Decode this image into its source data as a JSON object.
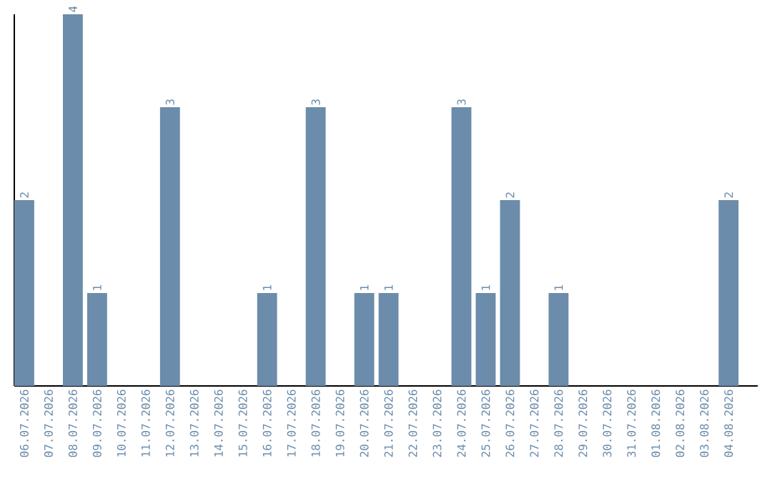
{
  "chart_data": {
    "type": "bar",
    "categories": [
      "06.07.2026",
      "07.07.2026",
      "08.07.2026",
      "09.07.2026",
      "10.07.2026",
      "11.07.2026",
      "12.07.2026",
      "13.07.2026",
      "14.07.2026",
      "15.07.2026",
      "16.07.2026",
      "17.07.2026",
      "18.07.2026",
      "19.07.2026",
      "20.07.2026",
      "21.07.2026",
      "22.07.2026",
      "23.07.2026",
      "24.07.2026",
      "25.07.2026",
      "26.07.2026",
      "27.07.2026",
      "28.07.2026",
      "29.07.2026",
      "30.07.2026",
      "31.07.2026",
      "01.08.2026",
      "02.08.2026",
      "03.08.2026",
      "04.08.2026"
    ],
    "values": [
      2,
      0,
      4,
      1,
      0,
      0,
      3,
      0,
      0,
      0,
      1,
      0,
      3,
      0,
      1,
      1,
      0,
      0,
      3,
      1,
      2,
      0,
      1,
      0,
      0,
      0,
      0,
      0,
      0,
      2
    ],
    "value_labels": [
      "2",
      null,
      "4",
      "1",
      null,
      null,
      "3",
      null,
      null,
      null,
      "1",
      null,
      "3",
      null,
      "1",
      "1",
      null,
      null,
      "3",
      "1",
      "2",
      null,
      "1",
      null,
      null,
      null,
      null,
      null,
      null,
      "2"
    ],
    "color": "#6b8caa"
  }
}
